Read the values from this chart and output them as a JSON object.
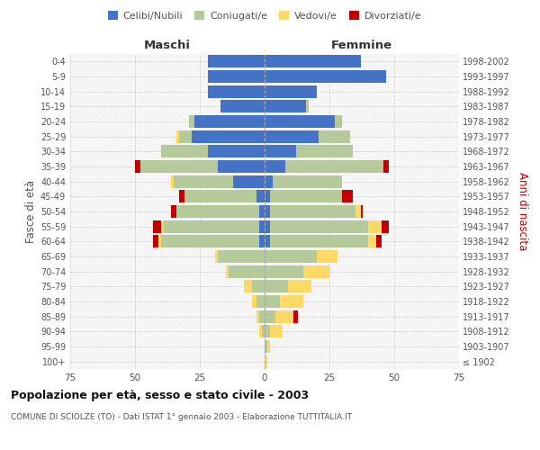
{
  "age_groups": [
    "100+",
    "95-99",
    "90-94",
    "85-89",
    "80-84",
    "75-79",
    "70-74",
    "65-69",
    "60-64",
    "55-59",
    "50-54",
    "45-49",
    "40-44",
    "35-39",
    "30-34",
    "25-29",
    "20-24",
    "15-19",
    "10-14",
    "5-9",
    "0-4"
  ],
  "birth_years": [
    "≤ 1902",
    "1903-1907",
    "1908-1912",
    "1913-1917",
    "1918-1922",
    "1923-1927",
    "1928-1932",
    "1933-1937",
    "1938-1942",
    "1943-1947",
    "1948-1952",
    "1953-1957",
    "1958-1962",
    "1963-1967",
    "1968-1972",
    "1973-1977",
    "1978-1982",
    "1983-1987",
    "1988-1992",
    "1993-1997",
    "1998-2002"
  ],
  "maschi": {
    "celibi": [
      0,
      0,
      0,
      0,
      0,
      0,
      0,
      0,
      2,
      2,
      2,
      3,
      12,
      18,
      22,
      28,
      27,
      17,
      22,
      22,
      22
    ],
    "coniugati": [
      0,
      0,
      1,
      2,
      3,
      5,
      14,
      18,
      38,
      37,
      32,
      28,
      23,
      30,
      18,
      5,
      2,
      0,
      0,
      0,
      0
    ],
    "vedovi": [
      0,
      0,
      1,
      1,
      2,
      3,
      1,
      1,
      1,
      1,
      0,
      0,
      1,
      0,
      0,
      1,
      0,
      0,
      0,
      0,
      0
    ],
    "divorziati": [
      0,
      0,
      0,
      0,
      0,
      0,
      0,
      0,
      2,
      3,
      2,
      2,
      0,
      2,
      0,
      0,
      0,
      0,
      0,
      0,
      0
    ]
  },
  "femmine": {
    "nubili": [
      0,
      0,
      0,
      0,
      0,
      0,
      0,
      0,
      2,
      2,
      2,
      2,
      3,
      8,
      12,
      21,
      27,
      16,
      20,
      47,
      37
    ],
    "coniugate": [
      0,
      1,
      2,
      4,
      6,
      9,
      15,
      20,
      38,
      38,
      33,
      28,
      27,
      38,
      22,
      12,
      3,
      1,
      0,
      0,
      0
    ],
    "vedove": [
      1,
      1,
      5,
      7,
      9,
      9,
      10,
      8,
      3,
      5,
      2,
      0,
      0,
      0,
      0,
      0,
      0,
      0,
      0,
      0,
      0
    ],
    "divorziate": [
      0,
      0,
      0,
      2,
      0,
      0,
      0,
      0,
      2,
      3,
      1,
      4,
      0,
      2,
      0,
      0,
      0,
      0,
      0,
      0,
      0
    ]
  },
  "colors": {
    "celibi_nubili": "#4472c4",
    "coniugati": "#b5c99a",
    "vedovi": "#ffd966",
    "divorziati": "#c00000"
  },
  "xlim": 75,
  "title": "Popolazione per età, sesso e stato civile - 2003",
  "subtitle": "COMUNE DI SCIOLZE (TO) - Dati ISTAT 1° gennaio 2003 - Elaborazione TUTTITALIA.IT",
  "ylabel_left": "Fasce di età",
  "ylabel_right": "Anni di nascita",
  "xlabel_left": "Maschi",
  "xlabel_right": "Femmine"
}
